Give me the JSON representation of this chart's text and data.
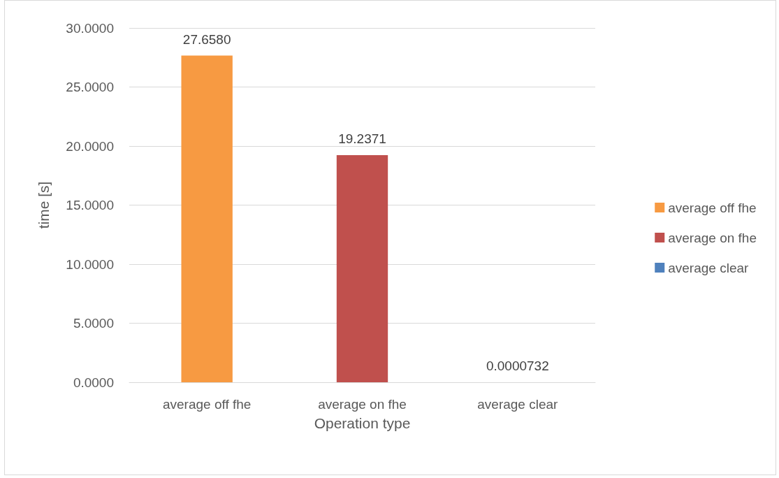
{
  "chart_data": {
    "type": "bar",
    "xlabel": "Operation type",
    "ylabel": "time [s]",
    "categories": [
      "average off fhe",
      "average on fhe",
      "average clear"
    ],
    "series": [
      {
        "name": "average off fhe",
        "color": "#f79a42",
        "values": [
          27.658,
          null,
          null
        ],
        "value_labels": [
          "27.6580",
          null,
          null
        ]
      },
      {
        "name": "average on fhe",
        "color": "#c0504d",
        "values": [
          null,
          19.2371,
          null
        ],
        "value_labels": [
          null,
          "19.2371",
          null
        ]
      },
      {
        "name": "average clear",
        "color": "#4f81bd",
        "values": [
          null,
          null,
          7.32e-05
        ],
        "value_labels": [
          null,
          null,
          "0.0000732"
        ]
      }
    ],
    "ylim": [
      0,
      30
    ],
    "yticks": [
      {
        "value": 0,
        "label": "0.0000"
      },
      {
        "value": 5,
        "label": "5.0000"
      },
      {
        "value": 10,
        "label": "10.0000"
      },
      {
        "value": 15,
        "label": "15.0000"
      },
      {
        "value": 20,
        "label": "20.0000"
      },
      {
        "value": 25,
        "label": "25.0000"
      },
      {
        "value": 30,
        "label": "30.0000"
      }
    ],
    "grid": "y",
    "legend": "right"
  }
}
